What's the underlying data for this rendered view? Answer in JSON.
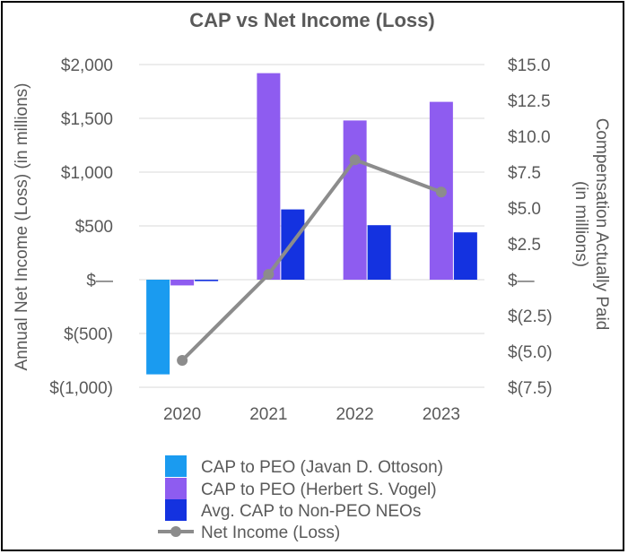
{
  "chart_data": {
    "type": "bar+line",
    "title": "CAP vs Net Income (Loss)",
    "categories": [
      "2020",
      "2021",
      "2022",
      "2023"
    ],
    "left_axis": {
      "label": "Annual Net Income (Loss) (in millions)",
      "ticks": [
        {
          "value": 2000,
          "label": "$2,000"
        },
        {
          "value": 1500,
          "label": "$1,500"
        },
        {
          "value": 1000,
          "label": "$1,000"
        },
        {
          "value": 500,
          "label": "$500"
        },
        {
          "value": 0,
          "label": "$—"
        },
        {
          "value": -500,
          "label": "$(500)"
        },
        {
          "value": -1000,
          "label": "$(1,000)"
        }
      ],
      "ylim": [
        -1000,
        2000
      ]
    },
    "right_axis": {
      "label_line1": "Compensation Actually Paid",
      "label_line2": "(in millions)",
      "ticks": [
        {
          "value": 15.0,
          "label": "$15.0"
        },
        {
          "value": 12.5,
          "label": "$12.5"
        },
        {
          "value": 10.0,
          "label": "$10.0"
        },
        {
          "value": 7.5,
          "label": "$7.5"
        },
        {
          "value": 5.0,
          "label": "$5.0"
        },
        {
          "value": 2.5,
          "label": "$2.5"
        },
        {
          "value": 0,
          "label": "$—"
        },
        {
          "value": -2.5,
          "label": "$(2.5)"
        },
        {
          "value": -5.0,
          "label": "$(5.0)"
        },
        {
          "value": -7.5,
          "label": "$(7.5)"
        }
      ],
      "ylim": [
        -7.5,
        15.0
      ]
    },
    "bar_series": [
      {
        "name": "CAP to PEO (Javan D. Ottoson)",
        "color": "#1a9bf0",
        "values": [
          -6.6,
          null,
          null,
          null
        ]
      },
      {
        "name": "CAP to PEO (Herbert S. Vogel)",
        "color": "#8e5cf0",
        "values": [
          -0.4,
          14.4,
          11.1,
          12.4
        ]
      },
      {
        "name": "Avg. CAP to Non-PEO NEOs",
        "color": "#1432e0",
        "values": [
          -0.1,
          4.9,
          3.8,
          3.3
        ]
      }
    ],
    "line_series": {
      "name": "Net Income (Loss)",
      "color": "#8c8c8c",
      "axis": "left",
      "values": [
        -750,
        50,
        1115,
        815
      ]
    }
  }
}
